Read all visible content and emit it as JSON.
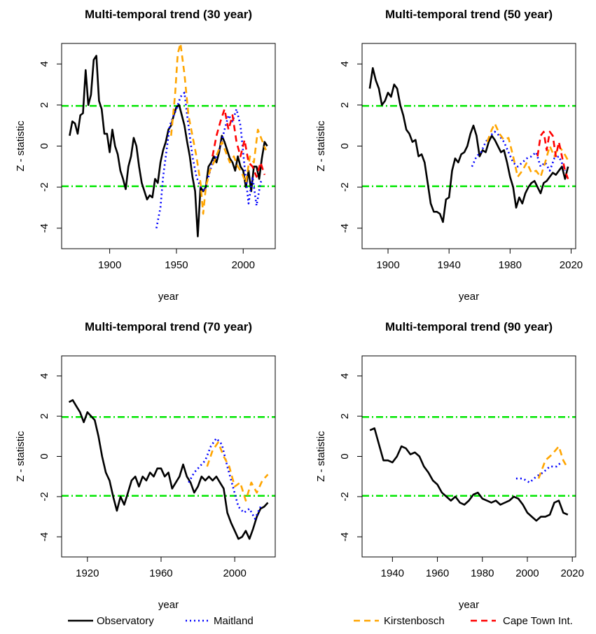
{
  "chart_data": [
    {
      "type": "line",
      "title": "Multi-temporal trend (30 year)",
      "x_label": "year",
      "y_label": "Z - statistic",
      "xlim": [
        1864,
        2024
      ],
      "xticks": [
        1900,
        1950,
        2000
      ],
      "ylim": [
        -5,
        5
      ],
      "yticks": [
        -4,
        -2,
        0,
        2,
        4
      ],
      "hlines": [
        1.96,
        -1.96
      ],
      "hline_color": "#00e600",
      "series": [
        {
          "name": "Observatory",
          "color": "#000000",
          "dash": "solid",
          "x": [
            1870,
            1872,
            1874,
            1876,
            1878,
            1880,
            1882,
            1884,
            1886,
            1888,
            1890,
            1892,
            1894,
            1896,
            1898,
            1900,
            1902,
            1904,
            1906,
            1908,
            1910,
            1912,
            1914,
            1916,
            1918,
            1920,
            1922,
            1924,
            1926,
            1928,
            1930,
            1932,
            1934,
            1936,
            1938,
            1940,
            1942,
            1944,
            1946,
            1948,
            1950,
            1952,
            1954,
            1956,
            1958,
            1960,
            1962,
            1964,
            1966,
            1968,
            1970,
            1972,
            1974,
            1976,
            1978,
            1980,
            1982,
            1984,
            1986,
            1988,
            1990,
            1992,
            1994,
            1996,
            1998,
            2000,
            2002,
            2004,
            2006,
            2008,
            2010,
            2012,
            2014,
            2016,
            2018
          ],
          "values": [
            0.5,
            1.2,
            1.1,
            0.6,
            1.5,
            1.6,
            3.7,
            2.0,
            2.5,
            4.2,
            4.4,
            2.2,
            1.8,
            0.6,
            0.6,
            -0.3,
            0.8,
            0.0,
            -0.4,
            -1.2,
            -1.6,
            -2.1,
            -1.0,
            -0.5,
            0.4,
            0.0,
            -1.0,
            -1.8,
            -2.2,
            -2.6,
            -2.4,
            -2.5,
            -1.6,
            -1.8,
            -0.8,
            -0.2,
            0.2,
            0.8,
            1.0,
            1.5,
            1.9,
            2.0,
            1.5,
            1.0,
            0.2,
            -0.5,
            -1.5,
            -2.2,
            -4.4,
            -2.0,
            -2.2,
            -2.0,
            -1.0,
            -0.8,
            -0.5,
            -0.8,
            -0.3,
            0.5,
            0.2,
            -0.2,
            -0.6,
            -0.8,
            -1.2,
            -0.5,
            -1.0,
            -1.2,
            -2.0,
            -1.2,
            -2.2,
            -1.0,
            -1.0,
            -1.6,
            -0.6,
            0.2,
            0.0
          ]
        },
        {
          "name": "Maitland",
          "color": "#0000ff",
          "dash": "dotted",
          "x": [
            1935,
            1938,
            1940,
            1942,
            1945,
            1948,
            1950,
            1953,
            1956,
            1958,
            1960,
            1962,
            1965,
            1968,
            1971,
            1974,
            1977,
            1980,
            1983,
            1986,
            1989,
            1992,
            1995,
            1998,
            2001,
            2004,
            2007,
            2010,
            2013,
            2014
          ],
          "values": [
            -4.0,
            -3.0,
            -1.5,
            -0.5,
            1.0,
            1.5,
            1.8,
            2.4,
            2.6,
            1.5,
            0.5,
            -0.5,
            -1.5,
            -2.0,
            -2.2,
            -1.5,
            -0.8,
            -0.5,
            0.0,
            0.8,
            1.5,
            1.2,
            1.8,
            1.0,
            -1.0,
            -2.8,
            -1.5,
            -2.9,
            -1.8,
            -1.6
          ]
        },
        {
          "name": "Kirstenbosch",
          "color": "#ffa500",
          "dash": "dashed",
          "x": [
            1946,
            1949,
            1951,
            1953,
            1956,
            1959,
            1962,
            1965,
            1968,
            1970,
            1972,
            1975,
            1978,
            1981,
            1984,
            1987,
            1990,
            1993,
            1996,
            1999,
            2002,
            2005,
            2008,
            2011,
            2014,
            2017
          ],
          "values": [
            0.5,
            2.5,
            4.5,
            5.0,
            3.5,
            1.5,
            0.5,
            -0.5,
            -1.8,
            -3.3,
            -2.0,
            -1.2,
            -0.8,
            -0.3,
            0.2,
            -0.3,
            -0.8,
            -0.5,
            -1.0,
            -1.3,
            -1.8,
            -0.5,
            -0.8,
            0.8,
            0.3,
            -0.2
          ]
        },
        {
          "name": "Cape Town Int.",
          "color": "#ff0000",
          "dash": "dashed",
          "x": [
            1977,
            1980,
            1983,
            1986,
            1989,
            1992,
            1995,
            1998,
            2001,
            2004,
            2007,
            2010,
            2013,
            2016
          ],
          "values": [
            -0.5,
            0.5,
            1.2,
            1.8,
            0.8,
            1.5,
            0.2,
            -0.5,
            0.3,
            -0.8,
            -1.0,
            -1.5,
            -0.8,
            -1.4
          ]
        }
      ]
    },
    {
      "type": "line",
      "title": "Multi-temporal trend (50 year)",
      "x_label": "year",
      "y_label": "Z - statistic",
      "xlim": [
        1883,
        2023
      ],
      "xticks": [
        1900,
        1940,
        1980,
        2020
      ],
      "ylim": [
        -5,
        5
      ],
      "yticks": [
        -4,
        -2,
        0,
        2,
        4
      ],
      "hlines": [
        1.96,
        -1.96
      ],
      "hline_color": "#00e600",
      "series": [
        {
          "name": "Observatory",
          "color": "#000000",
          "dash": "solid",
          "x": [
            1888,
            1890,
            1892,
            1894,
            1896,
            1898,
            1900,
            1902,
            1904,
            1906,
            1908,
            1910,
            1912,
            1914,
            1916,
            1918,
            1920,
            1922,
            1924,
            1926,
            1928,
            1930,
            1932,
            1934,
            1936,
            1938,
            1940,
            1942,
            1944,
            1946,
            1948,
            1950,
            1952,
            1954,
            1956,
            1958,
            1960,
            1962,
            1964,
            1966,
            1968,
            1970,
            1972,
            1974,
            1976,
            1978,
            1980,
            1982,
            1984,
            1986,
            1988,
            1990,
            1992,
            1994,
            1996,
            1998,
            2000,
            2002,
            2004,
            2006,
            2008,
            2010,
            2012,
            2014,
            2016,
            2018
          ],
          "values": [
            2.8,
            3.8,
            3.2,
            2.8,
            2.0,
            2.2,
            2.6,
            2.4,
            3.0,
            2.8,
            2.0,
            1.5,
            0.8,
            0.6,
            0.2,
            0.3,
            -0.5,
            -0.4,
            -0.8,
            -1.8,
            -2.8,
            -3.2,
            -3.2,
            -3.3,
            -3.7,
            -2.6,
            -2.5,
            -1.2,
            -0.6,
            -0.8,
            -0.4,
            -0.3,
            0.0,
            0.6,
            1.0,
            0.5,
            -0.5,
            -0.2,
            -0.3,
            0.2,
            0.5,
            0.3,
            0.0,
            -0.3,
            -0.2,
            -0.8,
            -1.5,
            -2.0,
            -3.0,
            -2.5,
            -2.8,
            -2.3,
            -2.0,
            -1.8,
            -1.7,
            -2.0,
            -2.3,
            -1.8,
            -1.7,
            -1.5,
            -1.3,
            -1.4,
            -1.2,
            -1.0,
            -1.6,
            -1.0
          ]
        },
        {
          "name": "Maitland",
          "color": "#0000ff",
          "dash": "dotted",
          "x": [
            1955,
            1958,
            1961,
            1964,
            1967,
            1970,
            1973,
            1976,
            1979,
            1982,
            1985,
            1988,
            1991,
            1994,
            1997,
            2000,
            2003,
            2006,
            2009,
            2012,
            2015,
            2016
          ],
          "values": [
            -1.0,
            -0.5,
            -0.3,
            0.2,
            0.5,
            0.7,
            0.5,
            0.2,
            -0.3,
            -0.8,
            -1.0,
            -0.8,
            -0.6,
            -0.5,
            -0.3,
            -1.0,
            -0.8,
            -1.2,
            -0.6,
            -0.5,
            -1.0,
            -1.2
          ]
        },
        {
          "name": "Kirstenbosch",
          "color": "#ffa500",
          "dash": "dashed",
          "x": [
            1965,
            1968,
            1970,
            1973,
            1976,
            1979,
            1982,
            1985,
            1988,
            1991,
            1994,
            1997,
            2000,
            2003,
            2006,
            2009,
            2012,
            2015,
            2018
          ],
          "values": [
            0.2,
            0.8,
            1.1,
            0.6,
            0.3,
            0.4,
            -0.5,
            -1.5,
            -1.2,
            -0.8,
            -1.3,
            -1.2,
            -1.5,
            -0.8,
            0.0,
            -0.5,
            0.0,
            -0.3,
            -0.7
          ]
        },
        {
          "name": "Cape Town Int.",
          "color": "#ff0000",
          "dash": "dashed",
          "x": [
            1998,
            2000,
            2002,
            2004,
            2006,
            2008,
            2010,
            2012,
            2014,
            2016,
            2018
          ],
          "values": [
            -0.5,
            0.5,
            0.7,
            -0.2,
            0.7,
            0.5,
            -0.5,
            0.2,
            -0.5,
            -1.2,
            -1.6
          ]
        }
      ]
    },
    {
      "type": "line",
      "title": "Multi-temporal trend (70 year)",
      "x_label": "year",
      "y_label": "Z - statistic",
      "xlim": [
        1906,
        2022
      ],
      "xticks": [
        1920,
        1960,
        2000
      ],
      "ylim": [
        -5,
        5
      ],
      "yticks": [
        -4,
        -2,
        0,
        2,
        4
      ],
      "hlines": [
        1.96,
        -1.96
      ],
      "hline_color": "#00e600",
      "series": [
        {
          "name": "Observatory",
          "color": "#000000",
          "dash": "solid",
          "x": [
            1910,
            1912,
            1914,
            1916,
            1918,
            1920,
            1922,
            1924,
            1926,
            1928,
            1930,
            1932,
            1934,
            1936,
            1938,
            1940,
            1942,
            1944,
            1946,
            1948,
            1950,
            1952,
            1954,
            1956,
            1958,
            1960,
            1962,
            1964,
            1966,
            1968,
            1970,
            1972,
            1974,
            1976,
            1978,
            1980,
            1982,
            1984,
            1986,
            1988,
            1990,
            1992,
            1994,
            1996,
            1998,
            2000,
            2002,
            2004,
            2006,
            2008,
            2010,
            2012,
            2014,
            2016,
            2018
          ],
          "values": [
            2.7,
            2.8,
            2.5,
            2.2,
            1.7,
            2.2,
            2.0,
            1.8,
            1.0,
            0.0,
            -0.8,
            -1.2,
            -2.0,
            -2.7,
            -2.0,
            -2.4,
            -1.8,
            -1.2,
            -1.0,
            -1.5,
            -1.0,
            -1.2,
            -0.8,
            -1.0,
            -0.6,
            -0.6,
            -1.0,
            -0.8,
            -1.6,
            -1.3,
            -1.0,
            -0.4,
            -1.0,
            -1.3,
            -1.8,
            -1.5,
            -1.0,
            -1.2,
            -1.0,
            -1.2,
            -1.0,
            -1.3,
            -1.6,
            -2.8,
            -3.3,
            -3.7,
            -4.1,
            -4.0,
            -3.7,
            -4.1,
            -3.6,
            -3.0,
            -2.6,
            -2.5,
            -2.3
          ]
        },
        {
          "name": "Maitland",
          "color": "#0000ff",
          "dash": "dotted",
          "x": [
            1975,
            1978,
            1981,
            1984,
            1987,
            1990,
            1993,
            1996,
            1999,
            2002,
            2005,
            2008,
            2011,
            2014
          ],
          "values": [
            -1.3,
            -0.8,
            -0.5,
            -0.2,
            0.5,
            0.9,
            0.6,
            -0.5,
            -1.5,
            -2.5,
            -2.8,
            -2.6,
            -3.1,
            -2.5
          ]
        },
        {
          "name": "Kirstenbosch",
          "color": "#ffa500",
          "dash": "dashed",
          "x": [
            1985,
            1988,
            1991,
            1994,
            1997,
            2000,
            2003,
            2006,
            2009,
            2012,
            2015,
            2018
          ],
          "values": [
            -0.5,
            0.3,
            0.7,
            0.0,
            -0.5,
            -1.5,
            -1.3,
            -2.2,
            -1.3,
            -1.8,
            -1.2,
            -0.9
          ]
        }
      ]
    },
    {
      "type": "line",
      "title": "Multi-temporal trend (90 year)",
      "x_label": "year",
      "y_label": "Z - statistic",
      "xlim": [
        1926.5,
        2021.5
      ],
      "xticks": [
        1940,
        1960,
        1980,
        2000,
        2020
      ],
      "ylim": [
        -5,
        5
      ],
      "yticks": [
        -4,
        -2,
        0,
        2,
        4
      ],
      "hlines": [
        1.96,
        -1.96
      ],
      "hline_color": "#00e600",
      "series": [
        {
          "name": "Observatory",
          "color": "#000000",
          "dash": "solid",
          "x": [
            1930,
            1932,
            1934,
            1936,
            1938,
            1940,
            1942,
            1944,
            1946,
            1948,
            1950,
            1952,
            1954,
            1956,
            1958,
            1960,
            1962,
            1964,
            1966,
            1968,
            1970,
            1972,
            1974,
            1976,
            1978,
            1980,
            1982,
            1984,
            1986,
            1988,
            1990,
            1992,
            1994,
            1996,
            1998,
            2000,
            2002,
            2004,
            2006,
            2008,
            2010,
            2012,
            2014,
            2016,
            2018
          ],
          "values": [
            1.3,
            1.4,
            0.6,
            -0.2,
            -0.2,
            -0.3,
            0.0,
            0.5,
            0.4,
            0.1,
            0.2,
            0.0,
            -0.5,
            -0.8,
            -1.2,
            -1.4,
            -1.8,
            -2.0,
            -2.2,
            -2.0,
            -2.3,
            -2.4,
            -2.2,
            -1.9,
            -1.8,
            -2.1,
            -2.2,
            -2.3,
            -2.2,
            -2.4,
            -2.3,
            -2.2,
            -2.0,
            -2.1,
            -2.4,
            -2.8,
            -3.0,
            -3.2,
            -3.0,
            -3.0,
            -2.9,
            -2.3,
            -2.2,
            -2.8,
            -2.9
          ]
        },
        {
          "name": "Maitland",
          "color": "#0000ff",
          "dash": "dotted",
          "x": [
            1995,
            1998,
            2001,
            2004,
            2007,
            2010,
            2013,
            2015
          ],
          "values": [
            -1.1,
            -1.1,
            -1.3,
            -1.0,
            -0.8,
            -0.5,
            -0.5,
            -0.3
          ]
        },
        {
          "name": "Kirstenbosch",
          "color": "#ffa500",
          "dash": "dashed",
          "x": [
            2005,
            2008,
            2011,
            2014,
            2016,
            2018
          ],
          "values": [
            -1.1,
            -0.2,
            0.1,
            0.5,
            -0.2,
            -0.6
          ]
        }
      ]
    }
  ]
}
